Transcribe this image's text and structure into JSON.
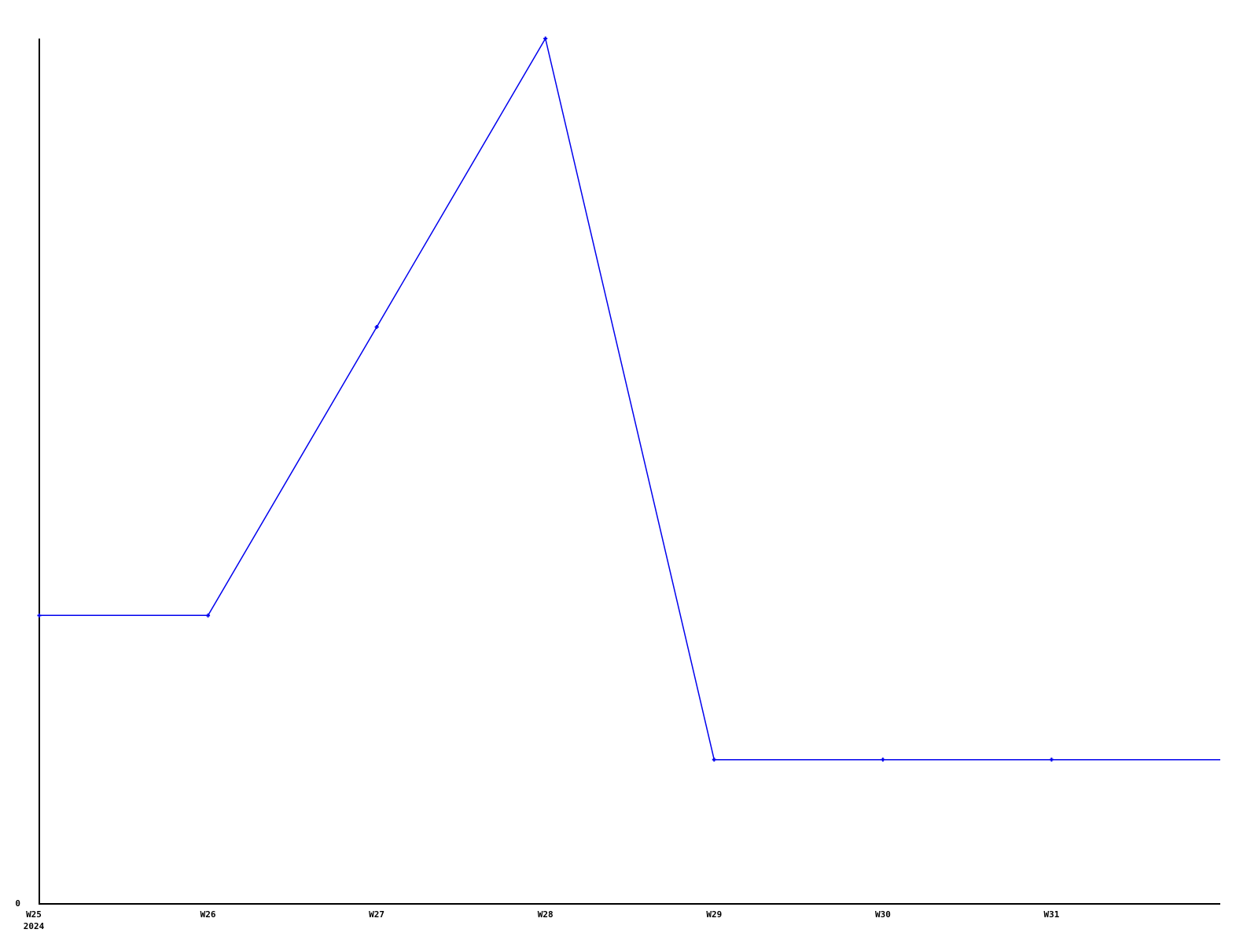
{
  "chart_data": {
    "type": "line",
    "title": "",
    "xlabel": "",
    "ylabel": "",
    "categories": [
      "W25",
      "W26",
      "W27",
      "W28",
      "W29",
      "W30",
      "W31"
    ],
    "values": [
      2,
      2,
      4,
      6,
      1,
      1,
      1
    ],
    "line_continues_to_right_edge_value": 1,
    "first_tick_year_label": "2024",
    "y_tick_labels": [
      "0"
    ],
    "ylim": [
      0,
      6
    ],
    "grid": false,
    "legend": false,
    "marker": "plus",
    "line_color": "#0000ee",
    "axis_color": "#000000",
    "label_color": "#000000",
    "background_color": "#ffffff"
  }
}
